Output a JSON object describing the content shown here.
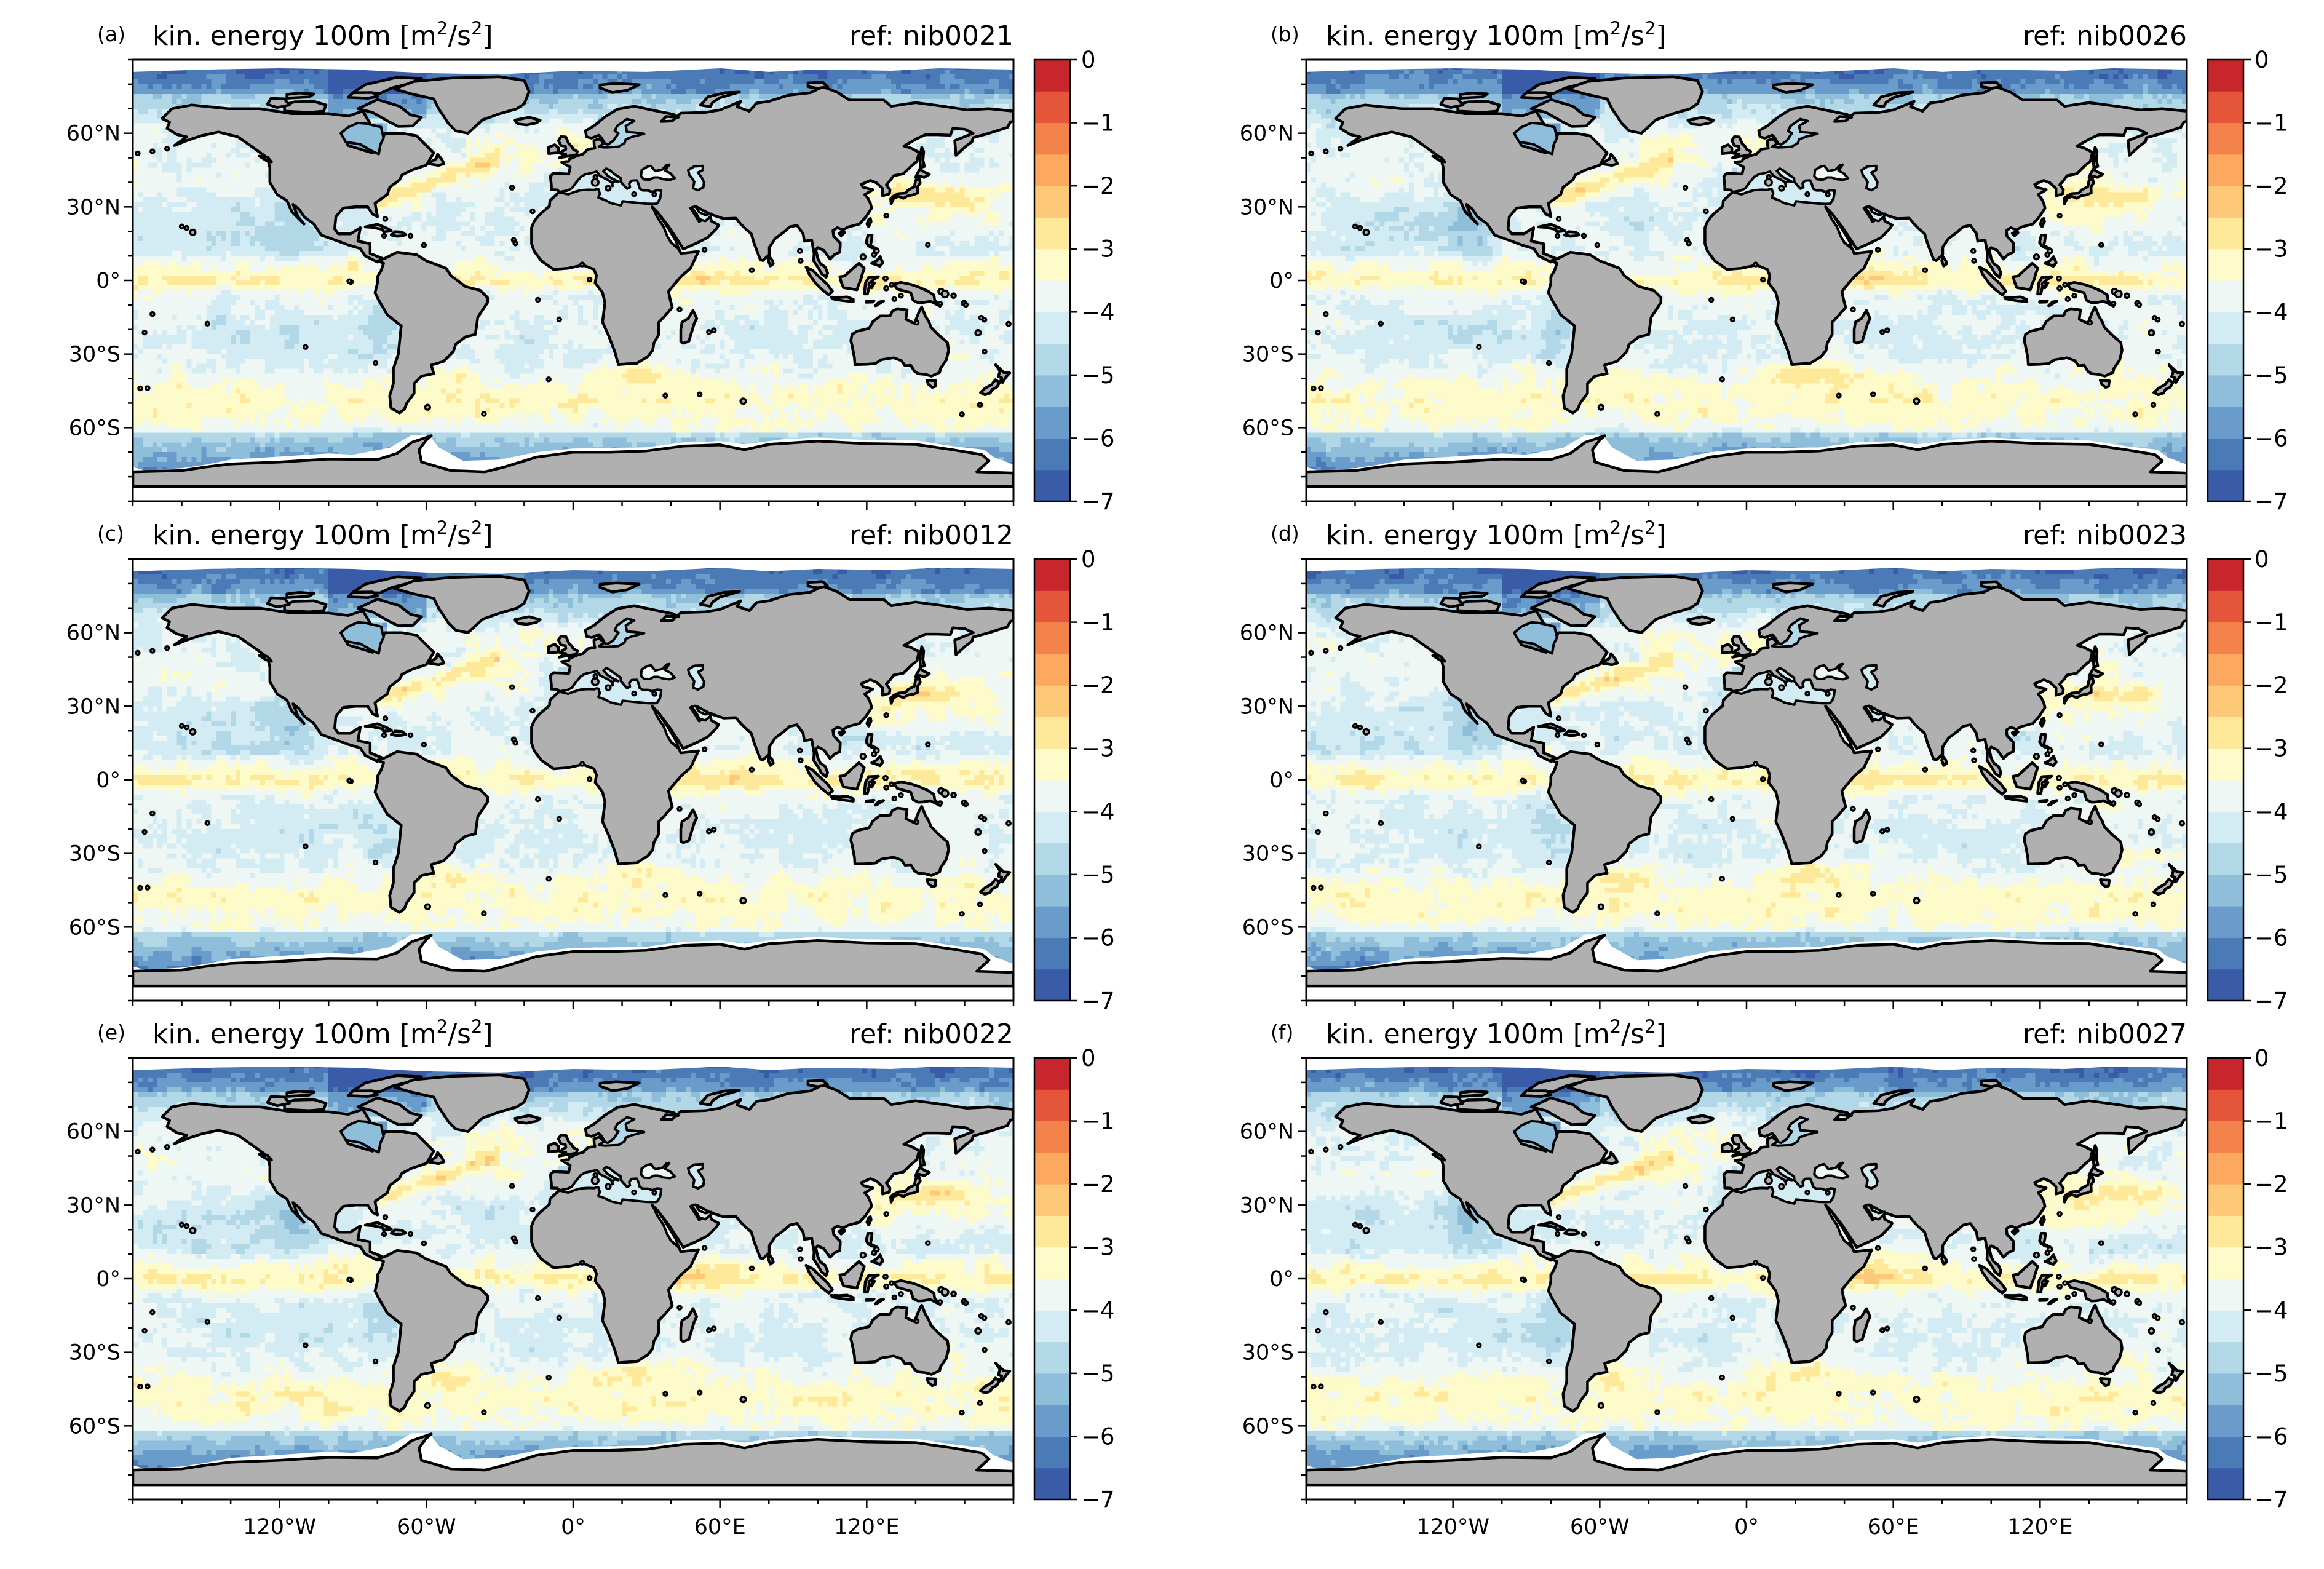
{
  "figure": {
    "panels": [
      {
        "id": "a",
        "label": "(a)",
        "title": "kin. energy 100m [m",
        "unit_sup": "2",
        "title_mid": "/s",
        "unit_sup2": "2",
        "title_end": "]",
        "ref": "ref: nib0021",
        "show_xticks": false
      },
      {
        "id": "b",
        "label": "(b)",
        "title": "kin. energy 100m [m",
        "unit_sup": "2",
        "title_mid": "/s",
        "unit_sup2": "2",
        "title_end": "]",
        "ref": "ref: nib0026",
        "show_xticks": false
      },
      {
        "id": "c",
        "label": "(c)",
        "title": "kin. energy 100m [m",
        "unit_sup": "2",
        "title_mid": "/s",
        "unit_sup2": "2",
        "title_end": "]",
        "ref": "ref: nib0012",
        "show_xticks": false
      },
      {
        "id": "d",
        "label": "(d)",
        "title": "kin. energy 100m [m",
        "unit_sup": "2",
        "title_mid": "/s",
        "unit_sup2": "2",
        "title_end": "]",
        "ref": "ref: nib0023",
        "show_xticks": false
      },
      {
        "id": "e",
        "label": "(e)",
        "title": "kin. energy 100m [m",
        "unit_sup": "2",
        "title_mid": "/s",
        "unit_sup2": "2",
        "title_end": "]",
        "ref": "ref: nib0022",
        "show_xticks": true
      },
      {
        "id": "f",
        "label": "(f)",
        "title": "kin. energy 100m [m",
        "unit_sup": "2",
        "title_mid": "/s",
        "unit_sup2": "2",
        "title_end": "]",
        "ref": "ref: nib0027",
        "show_xticks": true
      }
    ],
    "lat_ticks": [
      {
        "value": 60,
        "label": "60°N"
      },
      {
        "value": 30,
        "label": "30°N"
      },
      {
        "value": 0,
        "label": "0°"
      },
      {
        "value": -30,
        "label": "30°S"
      },
      {
        "value": -60,
        "label": "60°S"
      }
    ],
    "lon_ticks": [
      {
        "value": -120,
        "label": "120°W"
      },
      {
        "value": -60,
        "label": "60°W"
      },
      {
        "value": 0,
        "label": "0°"
      },
      {
        "value": 60,
        "label": "60°E"
      },
      {
        "value": 120,
        "label": "120°E"
      }
    ],
    "lon_range": [
      -180,
      180
    ],
    "lat_range": [
      -90,
      90
    ],
    "colorbar": {
      "min": -7,
      "max": 0,
      "tick_labels": [
        "0",
        "−1",
        "−2",
        "−3",
        "−4",
        "−5",
        "−6",
        "−7"
      ],
      "levels": 14,
      "colormap": [
        "#3a5ca8",
        "#4a7bb7",
        "#6a9ccb",
        "#8fbedb",
        "#b2d8e8",
        "#d3ecf3",
        "#eef7f3",
        "#fdfbc9",
        "#fee89a",
        "#fdc978",
        "#fca85e",
        "#f4824b",
        "#e4553a",
        "#c7262d"
      ]
    },
    "land_color": "#b0b0b0",
    "coast_color": "#000000"
  }
}
